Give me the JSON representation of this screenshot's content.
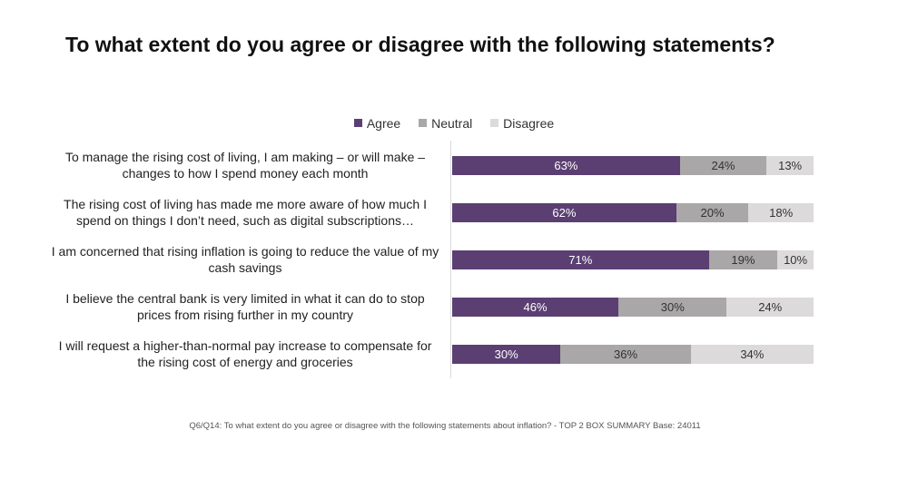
{
  "title": "To what extent do you agree or disagree with the following statements?",
  "footnote": "Q6/Q14: To what extent do you agree or disagree with the following statements about inflation? - TOP 2 BOX SUMMARY Base: 24011",
  "colors": {
    "agree": "#5b3f73",
    "neutral": "#a9a7a8",
    "disagree": "#dcdadb"
  },
  "chart_data": {
    "type": "bar",
    "orientation": "horizontal",
    "stacked": true,
    "legend_position": "top-center",
    "categories": [
      "To manage the rising cost of living, I am making – or will make – changes to how I spend money each month",
      "The rising cost of living has made me more aware of how much I spend on things I don’t need, such as digital subscriptions…",
      "I am concerned that rising inflation is going to reduce the value of my cash savings",
      "I believe the central bank is very limited in what it can do to stop prices from rising further in my country",
      "I will request a higher-than-normal pay increase to compensate for the rising cost of energy and groceries"
    ],
    "series": [
      {
        "name": "Agree",
        "values": [
          63,
          62,
          71,
          46,
          30
        ]
      },
      {
        "name": "Neutral",
        "values": [
          24,
          20,
          19,
          30,
          36
        ]
      },
      {
        "name": "Disagree",
        "values": [
          13,
          18,
          10,
          24,
          34
        ]
      }
    ],
    "value_suffix": "%"
  }
}
